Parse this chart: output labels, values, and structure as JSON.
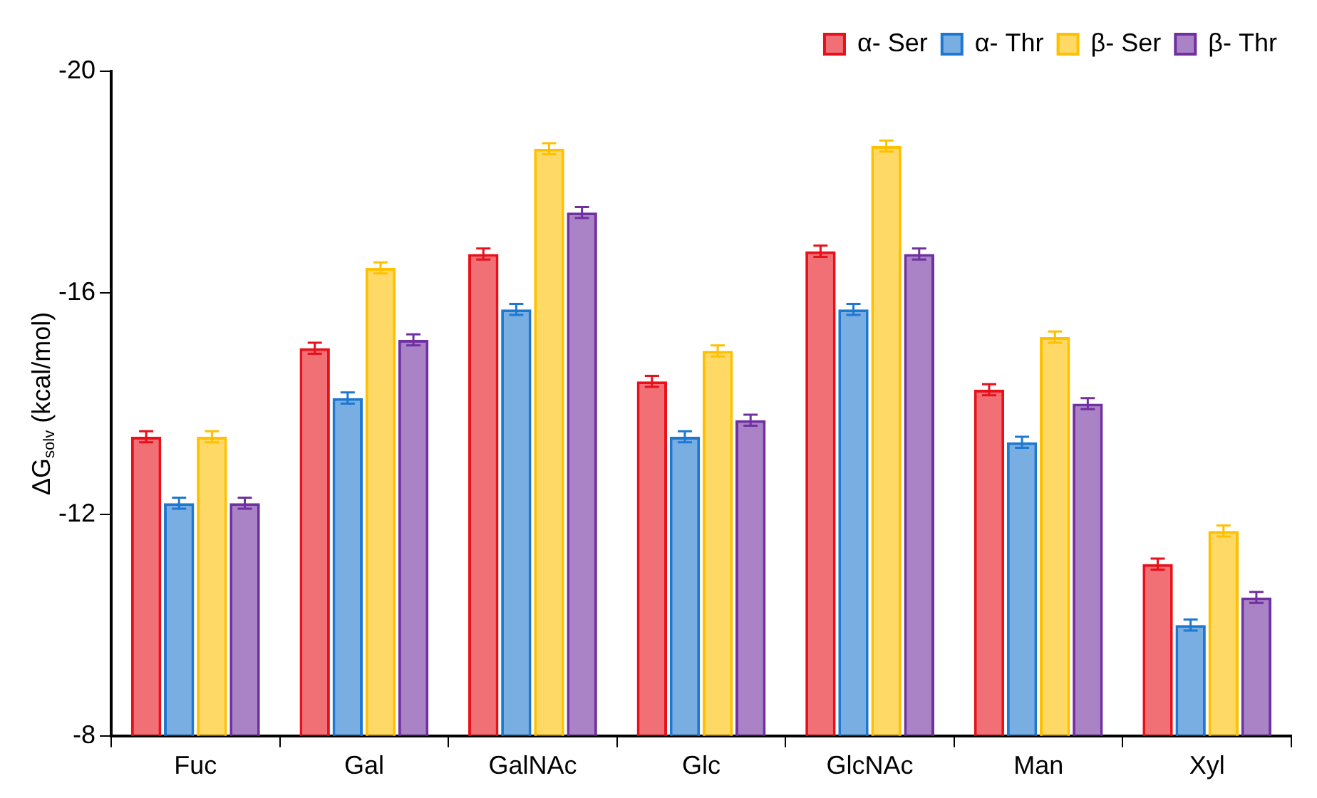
{
  "chart_data": {
    "type": "bar",
    "categories": [
      "Fuc",
      "Gal",
      "GalNAc",
      "Glc",
      "GlcNAc",
      "Man",
      "Xyl"
    ],
    "ylabel": "ΔG$_{solv}$ (kcal/mol)",
    "series": [
      {
        "name": "α- Ser",
        "color": "#e8101a",
        "values": [
          -13.4,
          -15.0,
          -16.7,
          -14.4,
          -16.75,
          -14.25,
          -11.1
        ],
        "errors": [
          0.1,
          0.1,
          0.1,
          0.1,
          0.1,
          0.1,
          0.1
        ]
      },
      {
        "name": "α- Thr",
        "color": "#1f78d0",
        "values": [
          -12.2,
          -14.1,
          -15.7,
          -13.4,
          -15.7,
          -13.3,
          -10.0
        ],
        "errors": [
          0.1,
          0.1,
          0.1,
          0.1,
          0.1,
          0.1,
          0.1
        ]
      },
      {
        "name": "β- Ser",
        "color": "#ffc000",
        "values": [
          -13.4,
          -16.45,
          -18.6,
          -14.95,
          -18.65,
          -15.2,
          -11.7
        ],
        "errors": [
          0.1,
          0.1,
          0.1,
          0.1,
          0.1,
          0.1,
          0.1
        ]
      },
      {
        "name": "β- Thr",
        "color": "#7030a0",
        "values": [
          -12.2,
          -15.15,
          -17.45,
          -13.7,
          -16.7,
          -14.0,
          -10.5
        ],
        "errors": [
          0.1,
          0.1,
          0.1,
          0.1,
          0.1,
          0.1,
          0.1
        ]
      }
    ],
    "ylim": [
      -8,
      -20
    ],
    "yticks": [
      -20,
      -16,
      -12,
      -8
    ],
    "legend": "top right",
    "grid": false
  }
}
